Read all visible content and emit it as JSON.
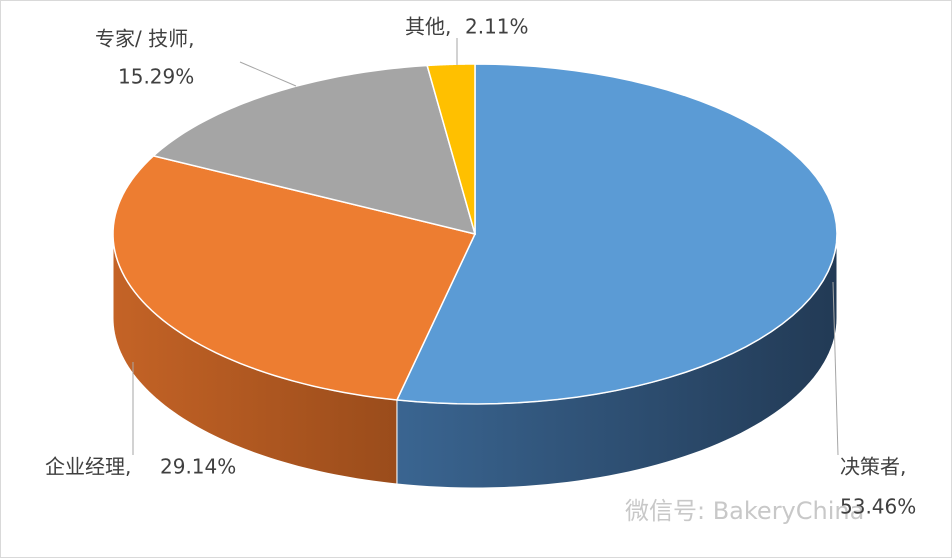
{
  "chart_data": {
    "type": "pie",
    "categories": [
      "决策者,",
      "企业经理,",
      "专家/ 技师,",
      "其他,"
    ],
    "values": [
      53.46,
      29.14,
      15.29,
      2.11
    ],
    "value_labels": [
      "53.46%",
      "29.14%",
      "15.29%",
      "2.11%"
    ],
    "colors": [
      "#5b9bd5",
      "#ed7d31",
      "#a5a5a5",
      "#ffc000"
    ],
    "watermark": "微信号: BakeryChina"
  }
}
